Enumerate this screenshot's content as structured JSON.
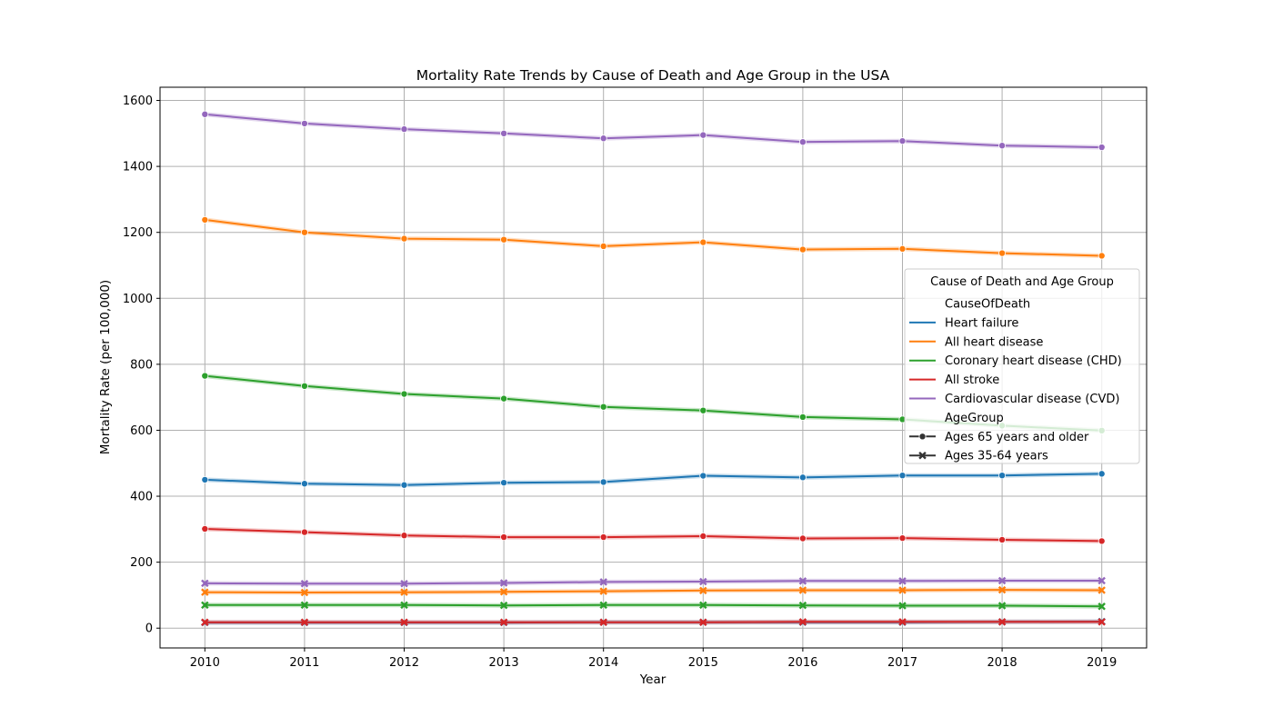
{
  "chart_data": {
    "type": "line",
    "title": "Mortality Rate Trends by Cause of Death and Age Group in the USA",
    "xlabel": "Year",
    "ylabel": "Mortality Rate (per 100,000)",
    "x": [
      2010,
      2011,
      2012,
      2013,
      2014,
      2015,
      2016,
      2017,
      2018,
      2019
    ],
    "xlim": [
      2009.55,
      2019.45
    ],
    "ylim": [
      -60,
      1640
    ],
    "yticks": [
      0,
      200,
      400,
      600,
      800,
      1000,
      1200,
      1400,
      1600
    ],
    "grid": true,
    "legend_position": "center-right",
    "legend": {
      "title": "Cause of Death and Age Group",
      "hue_title": "CauseOfDeath",
      "style_title": "AgeGroup",
      "hue_entries": [
        "Heart failure",
        "All heart disease",
        "Coronary heart disease (CHD)",
        "All stroke",
        "Cardiovascular disease (CVD)"
      ],
      "style_entries": [
        {
          "label": "Ages 65 years and older",
          "marker": "circle"
        },
        {
          "label": "Ages 35-64 years",
          "marker": "x"
        }
      ]
    },
    "colors": {
      "Heart failure": "#1f77b4",
      "All heart disease": "#ff7f0e",
      "Coronary heart disease (CHD)": "#2ca02c",
      "All stroke": "#d62728",
      "Cardiovascular disease (CVD)": "#9467bd"
    },
    "series": [
      {
        "cause": "Cardiovascular disease (CVD)",
        "age": "Ages 65 years and older",
        "marker": "circle",
        "values": [
          1558,
          1530,
          1513,
          1500,
          1485,
          1495,
          1474,
          1477,
          1463,
          1458
        ]
      },
      {
        "cause": "All heart disease",
        "age": "Ages 65 years and older",
        "marker": "circle",
        "values": [
          1238,
          1200,
          1181,
          1178,
          1158,
          1170,
          1148,
          1150,
          1137,
          1129
        ]
      },
      {
        "cause": "Coronary heart disease (CHD)",
        "age": "Ages 65 years and older",
        "marker": "circle",
        "values": [
          765,
          734,
          710,
          696,
          671,
          660,
          640,
          633,
          614,
          599
        ]
      },
      {
        "cause": "Heart failure",
        "age": "Ages 65 years and older",
        "marker": "circle",
        "values": [
          450,
          438,
          434,
          441,
          443,
          462,
          457,
          463,
          463,
          468
        ]
      },
      {
        "cause": "All stroke",
        "age": "Ages 65 years and older",
        "marker": "circle",
        "values": [
          301,
          291,
          281,
          276,
          276,
          279,
          272,
          273,
          268,
          264
        ]
      },
      {
        "cause": "Cardiovascular disease (CVD)",
        "age": "Ages 35-64 years",
        "marker": "x",
        "values": [
          136,
          135,
          135,
          137,
          140,
          141,
          143,
          143,
          144,
          144
        ]
      },
      {
        "cause": "All heart disease",
        "age": "Ages 35-64 years",
        "marker": "x",
        "values": [
          109,
          108,
          109,
          110,
          112,
          114,
          115,
          115,
          116,
          115
        ]
      },
      {
        "cause": "Coronary heart disease (CHD)",
        "age": "Ages 35-64 years",
        "marker": "x",
        "values": [
          70,
          70,
          70,
          69,
          70,
          70,
          69,
          68,
          68,
          66
        ]
      },
      {
        "cause": "Heart failure",
        "age": "Ages 35-64 years",
        "marker": "x",
        "values": [
          17,
          17,
          17,
          17,
          18,
          18,
          18,
          18,
          19,
          20
        ]
      },
      {
        "cause": "All stroke",
        "age": "Ages 35-64 years",
        "marker": "x",
        "values": [
          18,
          18,
          18,
          18,
          18,
          18,
          19,
          19,
          19,
          19
        ]
      }
    ]
  }
}
